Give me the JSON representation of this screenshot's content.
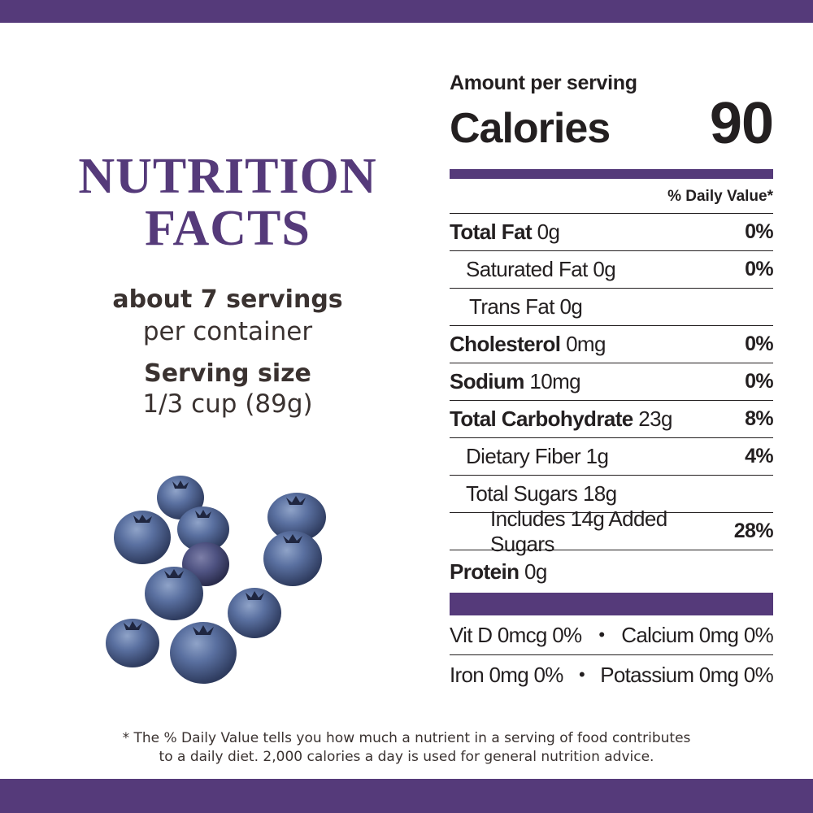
{
  "heading": {
    "line1": "NUTRITION",
    "line2": "FACTS"
  },
  "servings": {
    "count": "about 7 servings",
    "unit": "per container"
  },
  "serving_size": {
    "label": "Serving size",
    "value": "1/3 cup (89g)"
  },
  "label": {
    "amount_per_serving": "Amount per serving",
    "calories_label": "Calories",
    "calories_value": "90",
    "daily_value_header": "% Daily Value*",
    "rows": [
      {
        "name": "Total Fat",
        "amount": "0g",
        "dv": "0%"
      },
      {
        "name": "Saturated Fat 0g",
        "dv": "0%"
      },
      {
        "name": "Trans Fat 0g"
      },
      {
        "name": "Cholesterol",
        "amount": "0mg",
        "dv": "0%"
      },
      {
        "name": "Sodium",
        "amount": "10mg",
        "dv": "0%"
      },
      {
        "name": "Total Carbohydrate",
        "amount": "23g",
        "dv": "8%"
      },
      {
        "name": "Dietary Fiber 1g",
        "dv": "4%"
      },
      {
        "name": "Total Sugars 18g"
      },
      {
        "name": "Includes 14g Added Sugars",
        "dv": "28%"
      },
      {
        "name": "Protein",
        "amount": "0g"
      }
    ],
    "vitamins": [
      {
        "left": "Vit D 0mcg 0%",
        "bullet": "•",
        "right": "Calcium 0mg 0%"
      },
      {
        "left": "Iron 0mg 0%",
        "bullet": "•",
        "right": "Potassium 0mg 0%"
      }
    ]
  },
  "footnote": {
    "line1": "* The % Daily Value tells you how much a nutrient in a serving of food contributes",
    "line2": "to a daily diet. 2,000 calories a day is used for general nutrition advice."
  },
  "colors": {
    "brand_purple": "#553a7a",
    "text": "#231f20",
    "blueberry": "#4a5f8f"
  }
}
